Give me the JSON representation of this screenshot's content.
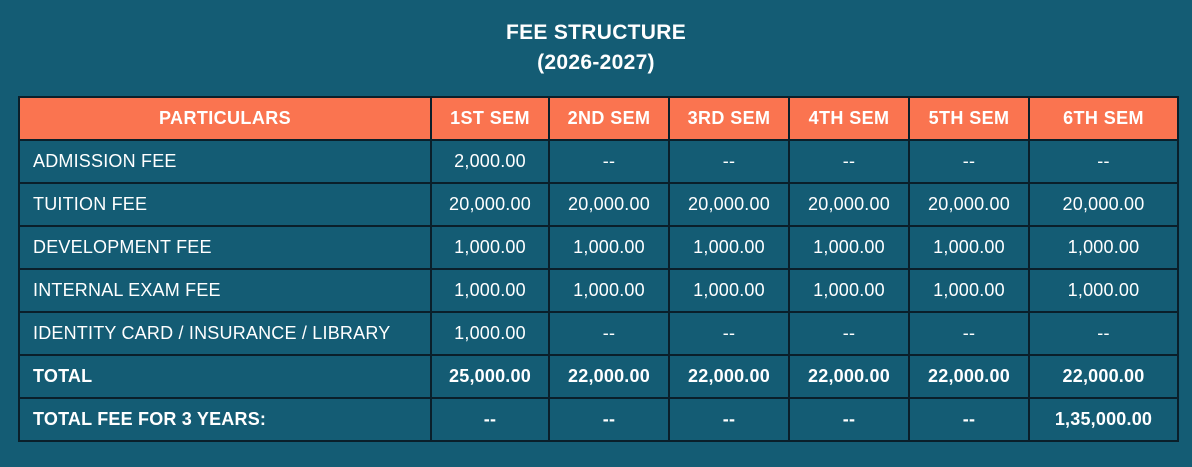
{
  "header": {
    "title": "FEE STRUCTURE",
    "year": "(2026-2027)"
  },
  "colors": {
    "background": "#145c74",
    "header_row_bg": "#fa7450",
    "table_border": "#0a1f2a",
    "text": "#ffffff"
  },
  "table": {
    "columns": [
      "PARTICULARS",
      "1ST SEM",
      "2ND SEM",
      "3RD SEM",
      "4TH SEM",
      "5TH SEM",
      "6TH SEM"
    ],
    "rows": [
      {
        "label": "ADMISSION FEE",
        "values": [
          "2,000.00",
          "--",
          "--",
          "--",
          "--",
          "--"
        ],
        "bold": false
      },
      {
        "label": "TUITION FEE",
        "values": [
          "20,000.00",
          "20,000.00",
          "20,000.00",
          "20,000.00",
          "20,000.00",
          "20,000.00"
        ],
        "bold": false
      },
      {
        "label": "DEVELOPMENT FEE",
        "values": [
          "1,000.00",
          "1,000.00",
          "1,000.00",
          "1,000.00",
          "1,000.00",
          "1,000.00"
        ],
        "bold": false
      },
      {
        "label": "INTERNAL EXAM FEE",
        "values": [
          "1,000.00",
          "1,000.00",
          "1,000.00",
          "1,000.00",
          "1,000.00",
          "1,000.00"
        ],
        "bold": false
      },
      {
        "label": "IDENTITY CARD / INSURANCE / LIBRARY",
        "values": [
          "1,000.00",
          "--",
          "--",
          "--",
          "--",
          "--"
        ],
        "bold": false
      },
      {
        "label": "TOTAL",
        "values": [
          "25,000.00",
          "22,000.00",
          "22,000.00",
          "22,000.00",
          "22,000.00",
          "22,000.00"
        ],
        "bold": true
      },
      {
        "label": "TOTAL FEE FOR 3 YEARS:",
        "values": [
          "--",
          "--",
          "--",
          "--",
          "--",
          "1,35,000.00"
        ],
        "bold": true
      }
    ]
  }
}
